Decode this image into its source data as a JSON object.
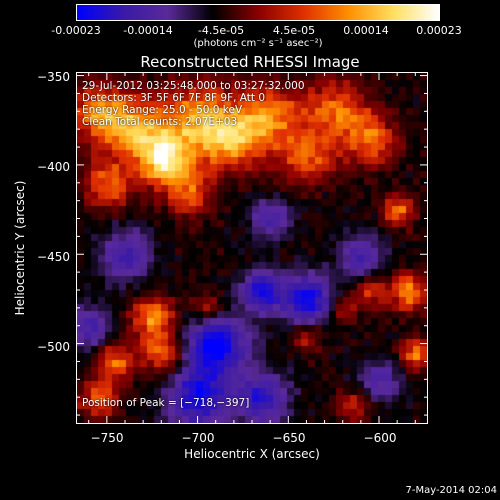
{
  "colorbar": {
    "ticks": [
      "-0.00023",
      "-0.00014",
      "-4.5e-05",
      "4.5e-05",
      "0.00014",
      "0.00023"
    ],
    "label": "(photons cm⁻² s⁻¹ asec⁻²)",
    "colors": [
      "#0000ff",
      "#3a1aa8",
      "#5a2a9a",
      "#000000",
      "#8a0000",
      "#e03000",
      "#ff9000",
      "#ffe060",
      "#ffffff"
    ]
  },
  "chart_data": {
    "type": "heatmap",
    "title": "Reconstructed RHESSI Image",
    "xlabel": "Heliocentric X (arcsec)",
    "ylabel": "Heliocentric Y (arcsec)",
    "xlim": [
      -767,
      -573
    ],
    "ylim": [
      -545,
      -348
    ],
    "xticks": [
      {
        "value": -750,
        "label": "−750"
      },
      {
        "value": -700,
        "label": "−700"
      },
      {
        "value": -650,
        "label": "−650"
      },
      {
        "value": -600,
        "label": "−600"
      }
    ],
    "yticks": [
      {
        "value": -350,
        "label": "−350"
      },
      {
        "value": -400,
        "label": "−400"
      },
      {
        "value": -450,
        "label": "−450"
      },
      {
        "value": -500,
        "label": "−500"
      }
    ],
    "vmin": -0.00023,
    "vmax": 0.00023,
    "peak": {
      "x": -718,
      "y": -397
    },
    "annotations": [
      "29-Jul-2012 03:25:48.000 to 03:27:32.000",
      "Detectors: 3F 5F 6F 7F 8F 9F, Att 0",
      "Energy Range: 25.0 - 50.0 keV",
      "Clean    Total counts: 2.07E+03"
    ],
    "peak_label": "Position of Peak = [−718,−397]"
  },
  "footer": {
    "date": "7-May-2014 02:04"
  }
}
